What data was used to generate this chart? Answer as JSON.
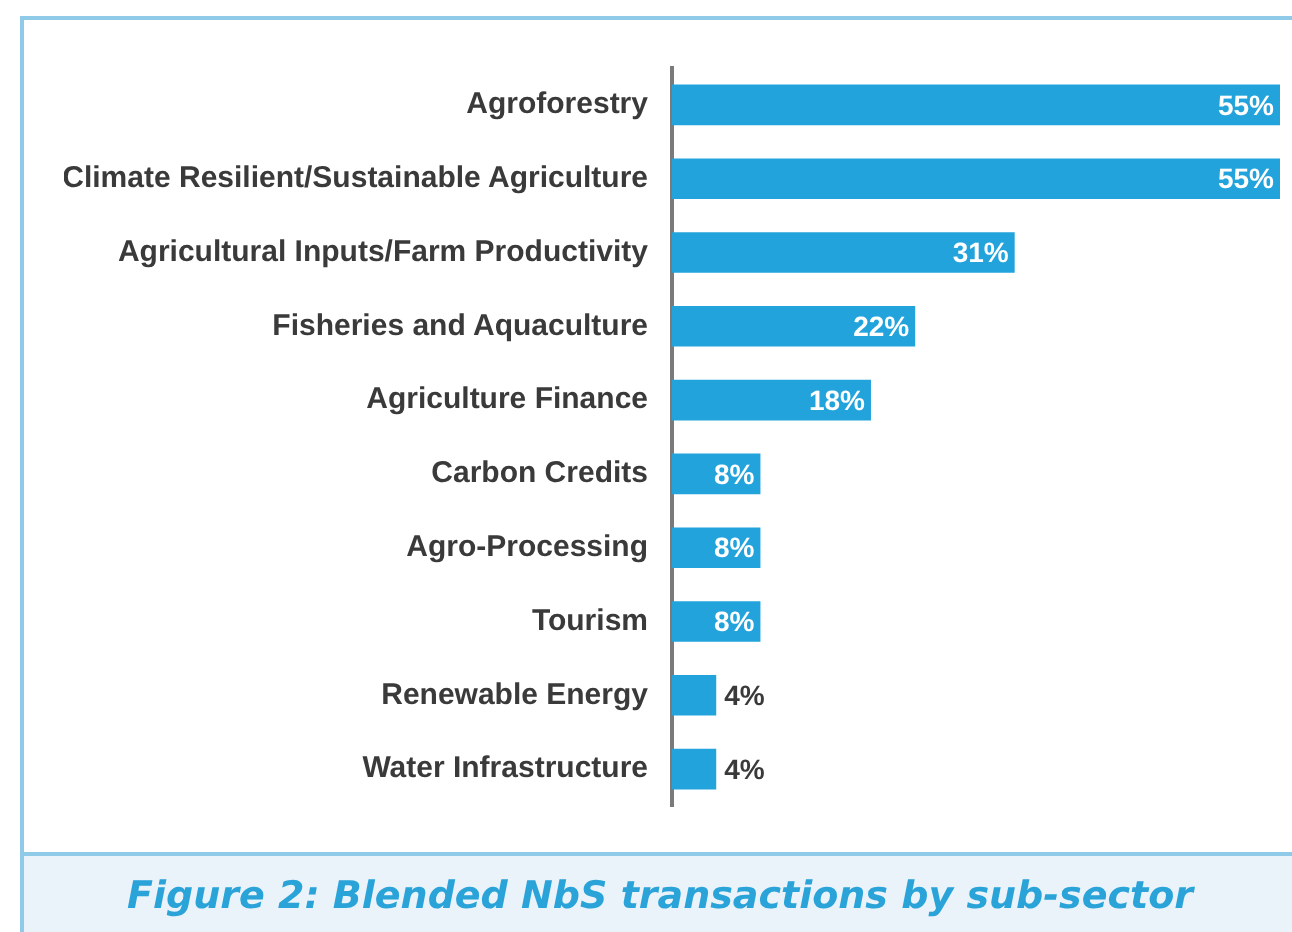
{
  "chart_data": {
    "type": "bar",
    "orientation": "horizontal",
    "title": "Figure 2: Blended NbS transactions by sub-sector",
    "categories": [
      "Agroforestry",
      "Climate Resilient/Sustainable Agriculture",
      "Agricultural Inputs/Farm Productivity",
      "Fisheries and Aquaculture",
      "Agriculture Finance",
      "Carbon Credits",
      "Agro-Processing",
      "Tourism",
      "Renewable Energy",
      "Water Infrastructure"
    ],
    "values": [
      55,
      55,
      31,
      22,
      18,
      8,
      8,
      8,
      4,
      4
    ],
    "value_labels": [
      "55%",
      "55%",
      "31%",
      "22%",
      "18%",
      "8%",
      "8%",
      "8%",
      "4%",
      "4%"
    ],
    "color": "#22a3db",
    "legend": false
  }
}
